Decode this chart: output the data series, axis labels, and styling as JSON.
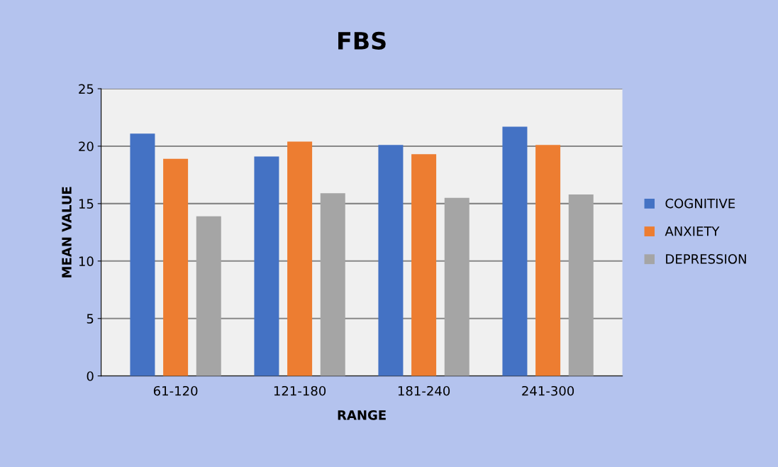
{
  "chart_data": {
    "type": "bar",
    "title": "FBS",
    "xlabel": "RANGE",
    "ylabel": "MEAN VALUE",
    "categories": [
      "61-120",
      "121-180",
      "181-240",
      "241-300"
    ],
    "series": [
      {
        "name": "COGNITIVE",
        "color": "#4472c4",
        "values": [
          21.1,
          19.1,
          20.1,
          21.7
        ]
      },
      {
        "name": "ANXIETY",
        "color": "#ed7d31",
        "values": [
          18.9,
          20.4,
          19.3,
          20.1
        ]
      },
      {
        "name": "DEPRESSION",
        "color": "#a5a5a5",
        "values": [
          13.9,
          15.9,
          15.5,
          15.8
        ]
      }
    ],
    "ylim": [
      0,
      25
    ],
    "yticks": [
      0,
      5,
      10,
      15,
      20,
      25
    ],
    "grid": "y",
    "legend": "right"
  }
}
